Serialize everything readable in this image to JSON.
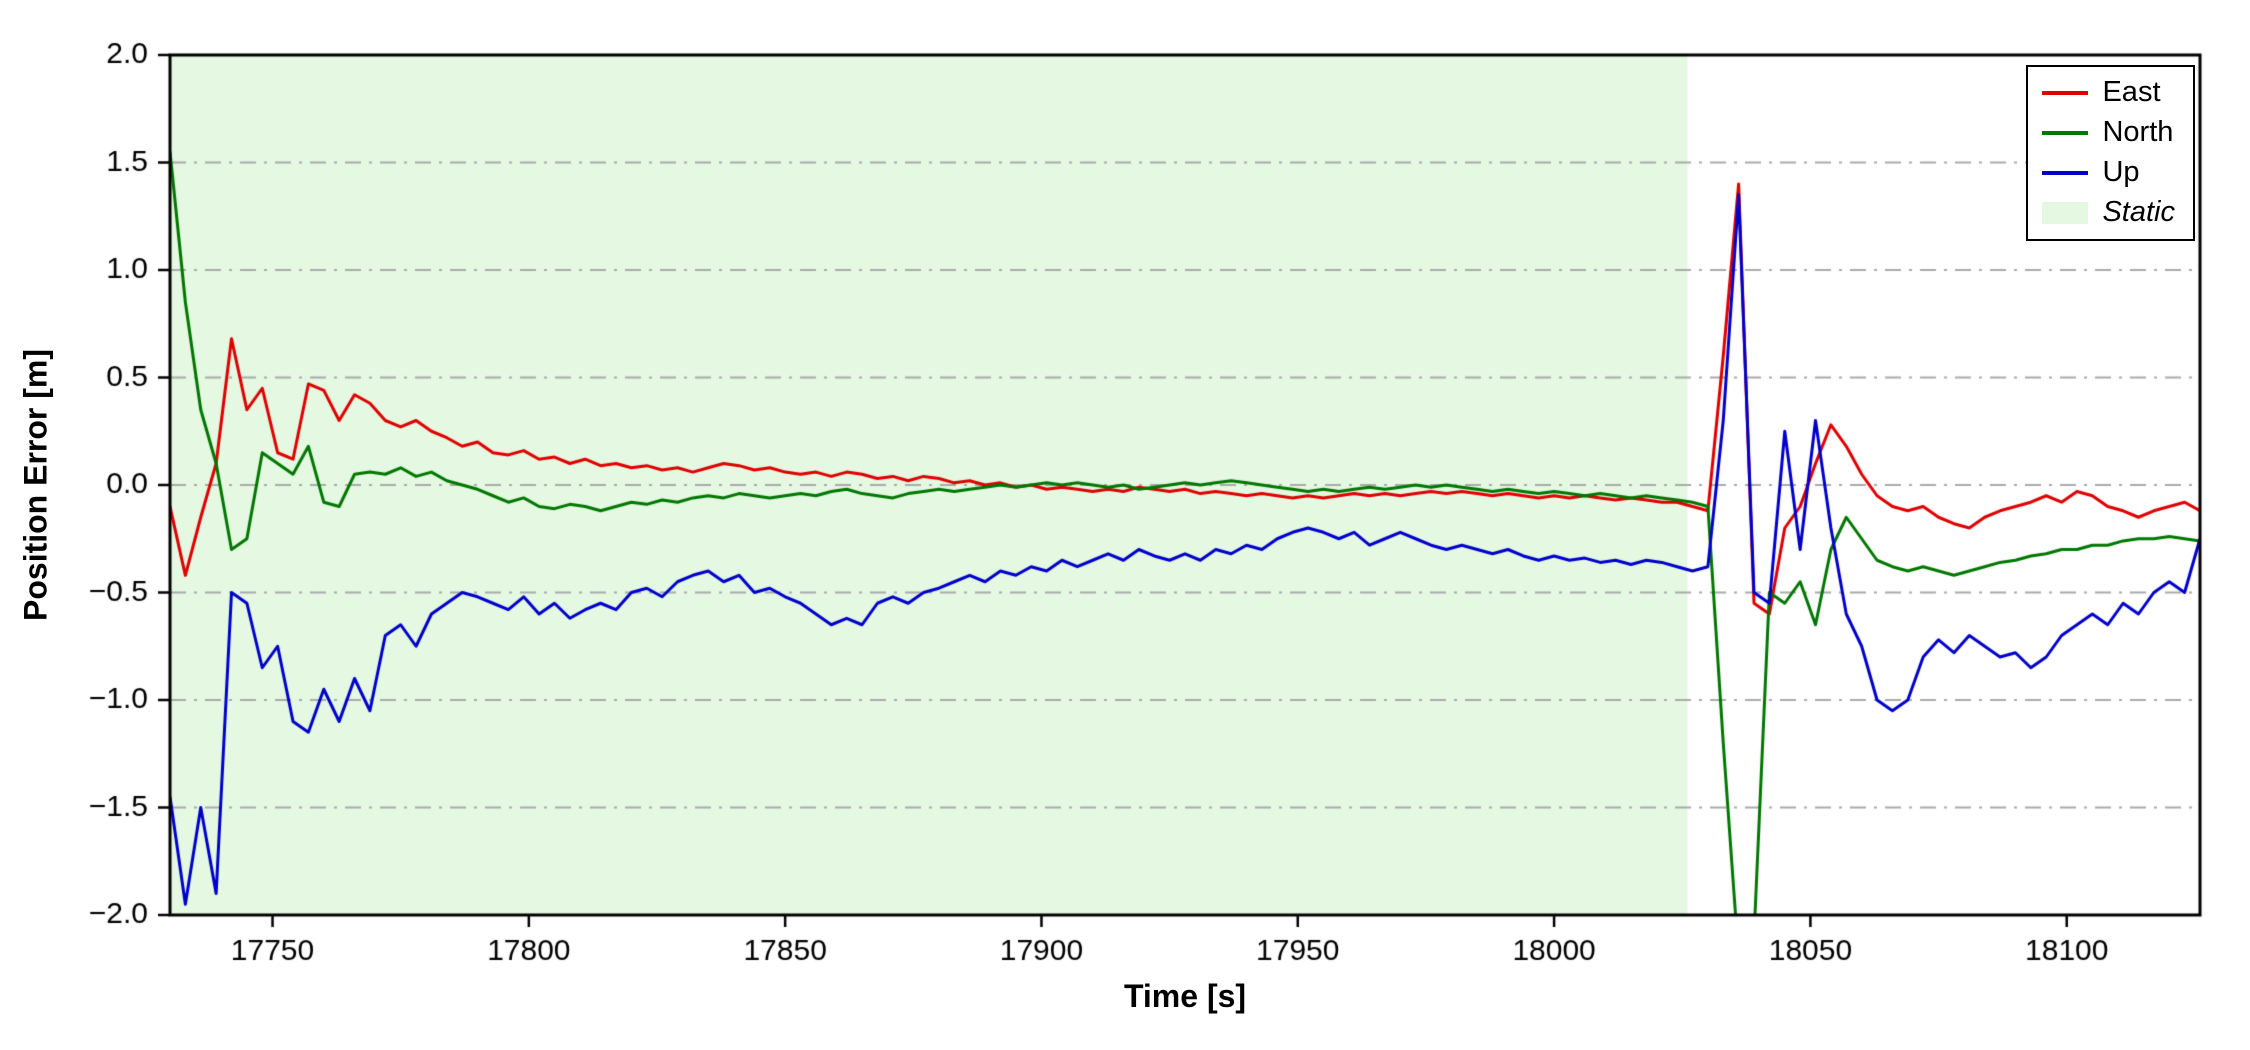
{
  "chart_data": {
    "type": "line",
    "title": "",
    "xlabel": "Time [s]",
    "ylabel": "Position Error [m]",
    "xlim": [
      17730,
      18126
    ],
    "ylim": [
      -2.0,
      2.0
    ],
    "x_ticks": [
      17750,
      17800,
      17850,
      17900,
      17950,
      18000,
      18050,
      18100
    ],
    "y_ticks": [
      -2.0,
      -1.5,
      -1.0,
      -0.5,
      0.0,
      0.5,
      1.0,
      1.5,
      2.0
    ],
    "grid": {
      "style": "dashdot",
      "color": "#aaaaaa",
      "lines": [
        -1.5,
        -1.0,
        -0.5,
        0.0,
        0.5,
        1.0,
        1.5
      ]
    },
    "legend_position": "upper right",
    "static_region": {
      "label": "Static",
      "x_start": 17730,
      "x_end": 18026,
      "color": "#e4f8e2"
    },
    "x_start": 17730,
    "x_step": 3,
    "series": [
      {
        "name": "East",
        "color": "#e00000",
        "values": [
          -0.1,
          -0.42,
          -0.15,
          0.1,
          0.68,
          0.35,
          0.45,
          0.15,
          0.12,
          0.47,
          0.44,
          0.3,
          0.42,
          0.38,
          0.3,
          0.27,
          0.3,
          0.25,
          0.22,
          0.18,
          0.2,
          0.15,
          0.14,
          0.16,
          0.12,
          0.13,
          0.1,
          0.12,
          0.09,
          0.1,
          0.08,
          0.09,
          0.07,
          0.08,
          0.06,
          0.08,
          0.1,
          0.09,
          0.07,
          0.08,
          0.06,
          0.05,
          0.06,
          0.04,
          0.06,
          0.05,
          0.03,
          0.04,
          0.02,
          0.04,
          0.03,
          0.01,
          0.02,
          0.0,
          0.01,
          -0.01,
          0.0,
          -0.02,
          -0.01,
          -0.02,
          -0.03,
          -0.02,
          -0.03,
          -0.01,
          -0.02,
          -0.03,
          -0.02,
          -0.04,
          -0.03,
          -0.04,
          -0.05,
          -0.04,
          -0.05,
          -0.06,
          -0.05,
          -0.06,
          -0.05,
          -0.04,
          -0.05,
          -0.04,
          -0.05,
          -0.04,
          -0.03,
          -0.04,
          -0.03,
          -0.04,
          -0.05,
          -0.04,
          -0.05,
          -0.06,
          -0.05,
          -0.06,
          -0.05,
          -0.06,
          -0.07,
          -0.06,
          -0.07,
          -0.08,
          -0.08,
          -0.1,
          -0.12,
          0.6,
          1.4,
          -0.55,
          -0.6,
          -0.2,
          -0.1,
          0.1,
          0.28,
          0.18,
          0.05,
          -0.05,
          -0.1,
          -0.12,
          -0.1,
          -0.15,
          -0.18,
          -0.2,
          -0.15,
          -0.12,
          -0.1,
          -0.08,
          -0.05,
          -0.08,
          -0.03,
          -0.05,
          -0.1,
          -0.12,
          -0.15,
          -0.12,
          -0.1,
          -0.08,
          -0.12
        ]
      },
      {
        "name": "North",
        "color": "#007700",
        "values": [
          1.55,
          0.85,
          0.35,
          0.1,
          -0.3,
          -0.25,
          0.15,
          0.1,
          0.05,
          0.18,
          -0.08,
          -0.1,
          0.05,
          0.06,
          0.05,
          0.08,
          0.04,
          0.06,
          0.02,
          0.0,
          -0.02,
          -0.05,
          -0.08,
          -0.06,
          -0.1,
          -0.11,
          -0.09,
          -0.1,
          -0.12,
          -0.1,
          -0.08,
          -0.09,
          -0.07,
          -0.08,
          -0.06,
          -0.05,
          -0.06,
          -0.04,
          -0.05,
          -0.06,
          -0.05,
          -0.04,
          -0.05,
          -0.03,
          -0.02,
          -0.04,
          -0.05,
          -0.06,
          -0.04,
          -0.03,
          -0.02,
          -0.03,
          -0.02,
          -0.01,
          0.0,
          -0.01,
          0.0,
          0.01,
          0.0,
          0.01,
          0.0,
          -0.01,
          0.0,
          -0.02,
          -0.01,
          0.0,
          0.01,
          0.0,
          0.01,
          0.02,
          0.01,
          0.0,
          -0.01,
          -0.02,
          -0.03,
          -0.02,
          -0.03,
          -0.02,
          -0.01,
          -0.02,
          -0.01,
          0.0,
          -0.01,
          0.0,
          -0.01,
          -0.02,
          -0.03,
          -0.02,
          -0.03,
          -0.04,
          -0.03,
          -0.04,
          -0.05,
          -0.04,
          -0.05,
          -0.06,
          -0.05,
          -0.06,
          -0.07,
          -0.08,
          -0.1,
          -1.2,
          -2.2,
          -2.1,
          -0.5,
          -0.55,
          -0.45,
          -0.65,
          -0.3,
          -0.15,
          -0.25,
          -0.35,
          -0.38,
          -0.4,
          -0.38,
          -0.4,
          -0.42,
          -0.4,
          -0.38,
          -0.36,
          -0.35,
          -0.33,
          -0.32,
          -0.3,
          -0.3,
          -0.28,
          -0.28,
          -0.26,
          -0.25,
          -0.25,
          -0.24,
          -0.25,
          -0.26
        ]
      },
      {
        "name": "Up",
        "color": "#0000cc",
        "values": [
          -1.45,
          -1.95,
          -1.5,
          -1.9,
          -0.5,
          -0.55,
          -0.85,
          -0.75,
          -1.1,
          -1.15,
          -0.95,
          -1.1,
          -0.9,
          -1.05,
          -0.7,
          -0.65,
          -0.75,
          -0.6,
          -0.55,
          -0.5,
          -0.52,
          -0.55,
          -0.58,
          -0.52,
          -0.6,
          -0.55,
          -0.62,
          -0.58,
          -0.55,
          -0.58,
          -0.5,
          -0.48,
          -0.52,
          -0.45,
          -0.42,
          -0.4,
          -0.45,
          -0.42,
          -0.5,
          -0.48,
          -0.52,
          -0.55,
          -0.6,
          -0.65,
          -0.62,
          -0.65,
          -0.55,
          -0.52,
          -0.55,
          -0.5,
          -0.48,
          -0.45,
          -0.42,
          -0.45,
          -0.4,
          -0.42,
          -0.38,
          -0.4,
          -0.35,
          -0.38,
          -0.35,
          -0.32,
          -0.35,
          -0.3,
          -0.33,
          -0.35,
          -0.32,
          -0.35,
          -0.3,
          -0.32,
          -0.28,
          -0.3,
          -0.25,
          -0.22,
          -0.2,
          -0.22,
          -0.25,
          -0.22,
          -0.28,
          -0.25,
          -0.22,
          -0.25,
          -0.28,
          -0.3,
          -0.28,
          -0.3,
          -0.32,
          -0.3,
          -0.33,
          -0.35,
          -0.33,
          -0.35,
          -0.34,
          -0.36,
          -0.35,
          -0.37,
          -0.35,
          -0.36,
          -0.38,
          -0.4,
          -0.38,
          0.3,
          1.35,
          -0.5,
          -0.55,
          0.25,
          -0.3,
          0.3,
          -0.2,
          -0.6,
          -0.75,
          -1.0,
          -1.05,
          -1.0,
          -0.8,
          -0.72,
          -0.78,
          -0.7,
          -0.75,
          -0.8,
          -0.78,
          -0.85,
          -0.8,
          -0.7,
          -0.65,
          -0.6,
          -0.65,
          -0.55,
          -0.6,
          -0.5,
          -0.45,
          -0.5,
          -0.25
        ]
      }
    ]
  }
}
